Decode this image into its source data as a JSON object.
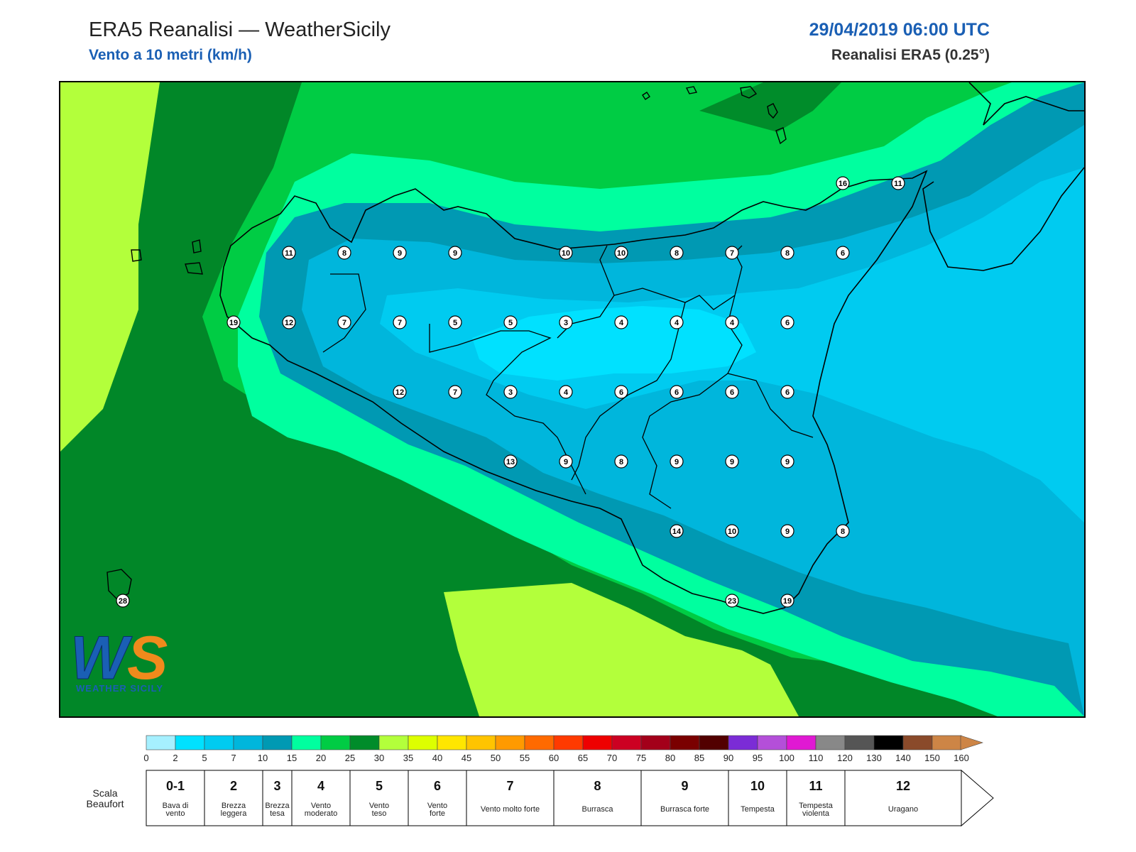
{
  "header": {
    "title": "ERA5 Reanalisi — WeatherSicily",
    "subtitle": "Vento a 10 metri (km/h)",
    "datetime": "29/04/2019 06:00 UTC",
    "source": "Reanalisi ERA5 (0.25°)"
  },
  "logo": {
    "letters": "WS",
    "text": "WEATHER SICILY"
  },
  "wind_points": [
    {
      "v": "11",
      "col": 3,
      "row": 3
    },
    {
      "v": "8",
      "col": 4,
      "row": 3
    },
    {
      "v": "9",
      "col": 5,
      "row": 3
    },
    {
      "v": "9",
      "col": 6,
      "row": 3
    },
    {
      "v": "10",
      "col": 8,
      "row": 3
    },
    {
      "v": "10",
      "col": 9,
      "row": 3
    },
    {
      "v": "8",
      "col": 10,
      "row": 3
    },
    {
      "v": "7",
      "col": 11,
      "row": 3
    },
    {
      "v": "8",
      "col": 12,
      "row": 3
    },
    {
      "v": "6",
      "col": 13,
      "row": 3
    },
    {
      "v": "19",
      "col": 2,
      "row": 4
    },
    {
      "v": "12",
      "col": 3,
      "row": 4
    },
    {
      "v": "7",
      "col": 4,
      "row": 4
    },
    {
      "v": "7",
      "col": 5,
      "row": 4
    },
    {
      "v": "5",
      "col": 6,
      "row": 4
    },
    {
      "v": "5",
      "col": 7,
      "row": 4
    },
    {
      "v": "3",
      "col": 8,
      "row": 4
    },
    {
      "v": "4",
      "col": 9,
      "row": 4
    },
    {
      "v": "4",
      "col": 10,
      "row": 4
    },
    {
      "v": "4",
      "col": 11,
      "row": 4
    },
    {
      "v": "6",
      "col": 12,
      "row": 4
    },
    {
      "v": "12",
      "col": 5,
      "row": 5
    },
    {
      "v": "7",
      "col": 6,
      "row": 5
    },
    {
      "v": "3",
      "col": 7,
      "row": 5
    },
    {
      "v": "4",
      "col": 8,
      "row": 5
    },
    {
      "v": "6",
      "col": 9,
      "row": 5
    },
    {
      "v": "6",
      "col": 10,
      "row": 5
    },
    {
      "v": "6",
      "col": 11,
      "row": 5
    },
    {
      "v": "6",
      "col": 12,
      "row": 5
    },
    {
      "v": "13",
      "col": 7,
      "row": 6
    },
    {
      "v": "9",
      "col": 8,
      "row": 6
    },
    {
      "v": "8",
      "col": 9,
      "row": 6
    },
    {
      "v": "9",
      "col": 10,
      "row": 6
    },
    {
      "v": "9",
      "col": 11,
      "row": 6
    },
    {
      "v": "9",
      "col": 12,
      "row": 6
    },
    {
      "v": "14",
      "col": 10,
      "row": 7
    },
    {
      "v": "10",
      "col": 11,
      "row": 7
    },
    {
      "v": "9",
      "col": 12,
      "row": 7
    },
    {
      "v": "8",
      "col": 13,
      "row": 7
    },
    {
      "v": "23",
      "col": 11,
      "row": 8
    },
    {
      "v": "19",
      "col": 12,
      "row": 8
    },
    {
      "v": "16",
      "col": 13,
      "row": 2
    },
    {
      "v": "11",
      "col": 14,
      "row": 2
    },
    {
      "v": "28",
      "col": 0,
      "row": 8
    }
  ],
  "colorbar": {
    "ticks": [
      "0",
      "2",
      "5",
      "7",
      "10",
      "15",
      "20",
      "25",
      "30",
      "35",
      "40",
      "45",
      "50",
      "55",
      "60",
      "65",
      "70",
      "75",
      "80",
      "85",
      "90",
      "95",
      "100",
      "110",
      "120",
      "130",
      "140",
      "150",
      "160"
    ],
    "colors": [
      "#a6f0ff",
      "#00e1ff",
      "#00cbf0",
      "#00b6dc",
      "#0099b3",
      "#00ff9f",
      "#00cc44",
      "#008c2a",
      "#b3ff3b",
      "#ddff00",
      "#ffe600",
      "#ffc400",
      "#ff9a00",
      "#ff6a00",
      "#ff3a00",
      "#ee0000",
      "#cc0022",
      "#a3001a",
      "#7a0000",
      "#520000",
      "#7b2cd6",
      "#b44fd9",
      "#e019d3",
      "#888888",
      "#555555",
      "#000000",
      "#8a4a2a",
      "#cd8546"
    ]
  },
  "beaufort": {
    "label": "Scala Beaufort",
    "classes": [
      {
        "n": "0-1",
        "name": "Bava di vento"
      },
      {
        "n": "2",
        "name": "Brezza leggera"
      },
      {
        "n": "3",
        "name": "Brezza tesa"
      },
      {
        "n": "4",
        "name": "Vento moderato"
      },
      {
        "n": "5",
        "name": "Vento teso"
      },
      {
        "n": "6",
        "name": "Vento forte"
      },
      {
        "n": "7",
        "name": "Vento molto forte"
      },
      {
        "n": "8",
        "name": "Burrasca"
      },
      {
        "n": "9",
        "name": "Burrasca forte"
      },
      {
        "n": "10",
        "name": "Tempesta"
      },
      {
        "n": "11",
        "name": "Tempesta violenta"
      },
      {
        "n": "12",
        "name": "Uragano"
      }
    ]
  }
}
